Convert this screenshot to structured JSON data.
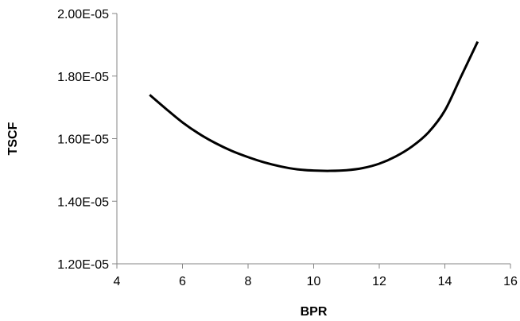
{
  "chart_data": {
    "type": "line",
    "xlabel": "BPR",
    "ylabel": "TSCF",
    "xlim": [
      4,
      16
    ],
    "ylim": [
      1.2e-05,
      2e-05
    ],
    "x_ticks": [
      4,
      6,
      8,
      10,
      12,
      14,
      16
    ],
    "x_tick_labels": [
      "4",
      "6",
      "8",
      "10",
      "12",
      "14",
      "16"
    ],
    "y_ticks": [
      1.2e-05,
      1.4e-05,
      1.6e-05,
      1.8e-05,
      2e-05
    ],
    "y_tick_labels": [
      "1.20E-05",
      "1.40E-05",
      "1.60E-05",
      "1.80E-05",
      "2.00E-05"
    ],
    "grid": false,
    "legend": "none",
    "series": [
      {
        "color": "#000000",
        "x": [
          5,
          5.5,
          6,
          6.5,
          7,
          7.5,
          8,
          8.5,
          9,
          9.5,
          10,
          10.5,
          11,
          11.5,
          12,
          12.5,
          13,
          13.5,
          14,
          14.5,
          15
        ],
        "y": [
          1.74e-05,
          1.695e-05,
          1.652e-05,
          1.616e-05,
          1.586e-05,
          1.561e-05,
          1.541e-05,
          1.524e-05,
          1.511e-05,
          1.502e-05,
          1.498e-05,
          1.497e-05,
          1.499e-05,
          1.506e-05,
          1.52e-05,
          1.543e-05,
          1.575e-05,
          1.62e-05,
          1.69e-05,
          1.8e-05,
          1.91e-05
        ]
      }
    ]
  }
}
